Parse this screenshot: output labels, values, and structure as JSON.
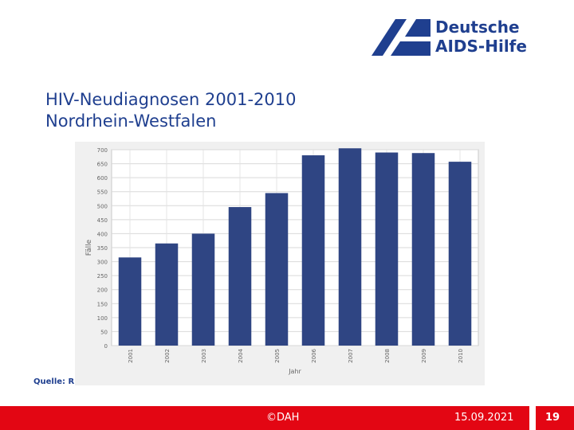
{
  "logo": {
    "line1": "Deutsche",
    "line2": "AIDS-Hilfe",
    "brand_color": "#1f3f8f"
  },
  "title": {
    "line1": "HIV-Neudiagnosen 2001-2010",
    "line2": "Nordrhein-Westfalen"
  },
  "source_label": "Quelle: R",
  "footer": {
    "copyright": "©DAH",
    "date": "15.09.2021",
    "page": "19",
    "bar_color": "#e30613"
  },
  "chart_data": {
    "type": "bar",
    "title": "",
    "xlabel": "Jahr",
    "ylabel": "Fälle",
    "categories": [
      "2001",
      "2002",
      "2003",
      "2004",
      "2005",
      "2006",
      "2007",
      "2008",
      "2009",
      "2010"
    ],
    "values": [
      315,
      365,
      400,
      495,
      545,
      680,
      705,
      690,
      688,
      657
    ],
    "ylim": [
      0,
      700
    ],
    "yticks": [
      0,
      50,
      100,
      150,
      200,
      250,
      300,
      350,
      400,
      450,
      500,
      550,
      600,
      650,
      700
    ],
    "grid": true,
    "bar_color": "#2f4583"
  }
}
